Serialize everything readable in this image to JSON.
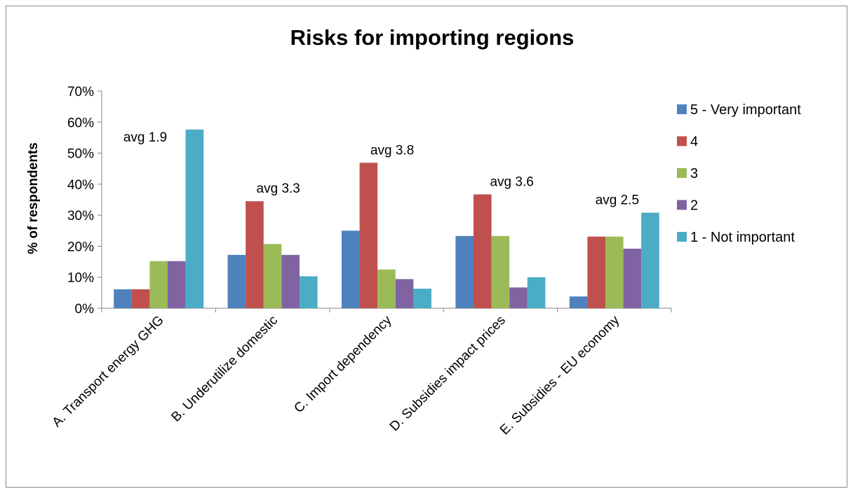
{
  "chart_data": {
    "type": "bar",
    "title": "Risks for importing regions",
    "xlabel": "",
    "ylabel": "% of respondents",
    "ylim": [
      0,
      70
    ],
    "yticks": [
      "0%",
      "10%",
      "20%",
      "30%",
      "40%",
      "50%",
      "60%",
      "70%"
    ],
    "categories": [
      "A. Transport energy GHG",
      "B. Underutilize domestic",
      "C. Import dependency",
      "D. Subsidies impact prices",
      "E. Subsidies - EU economy"
    ],
    "series": [
      {
        "name": "5  - Very important",
        "color": "#4F81BD",
        "values": [
          6.1,
          17.2,
          25.0,
          23.3,
          3.8
        ]
      },
      {
        "name": "4",
        "color": "#C0504D",
        "values": [
          6.1,
          34.5,
          46.9,
          36.7,
          23.1
        ]
      },
      {
        "name": "3",
        "color": "#9BBB59",
        "values": [
          15.2,
          20.7,
          12.5,
          23.3,
          23.1
        ]
      },
      {
        "name": "2",
        "color": "#8064A2",
        "values": [
          15.2,
          17.2,
          9.4,
          6.7,
          19.2
        ]
      },
      {
        "name": "1 - Not important",
        "color": "#4BACC6",
        "values": [
          57.6,
          10.3,
          6.3,
          10.0,
          30.8
        ]
      }
    ],
    "annotations": [
      "avg 1.9",
      "avg 3.3",
      "avg 3.8",
      "avg 3.6",
      "avg 2.5"
    ],
    "legend_position": "right",
    "grid": false
  }
}
